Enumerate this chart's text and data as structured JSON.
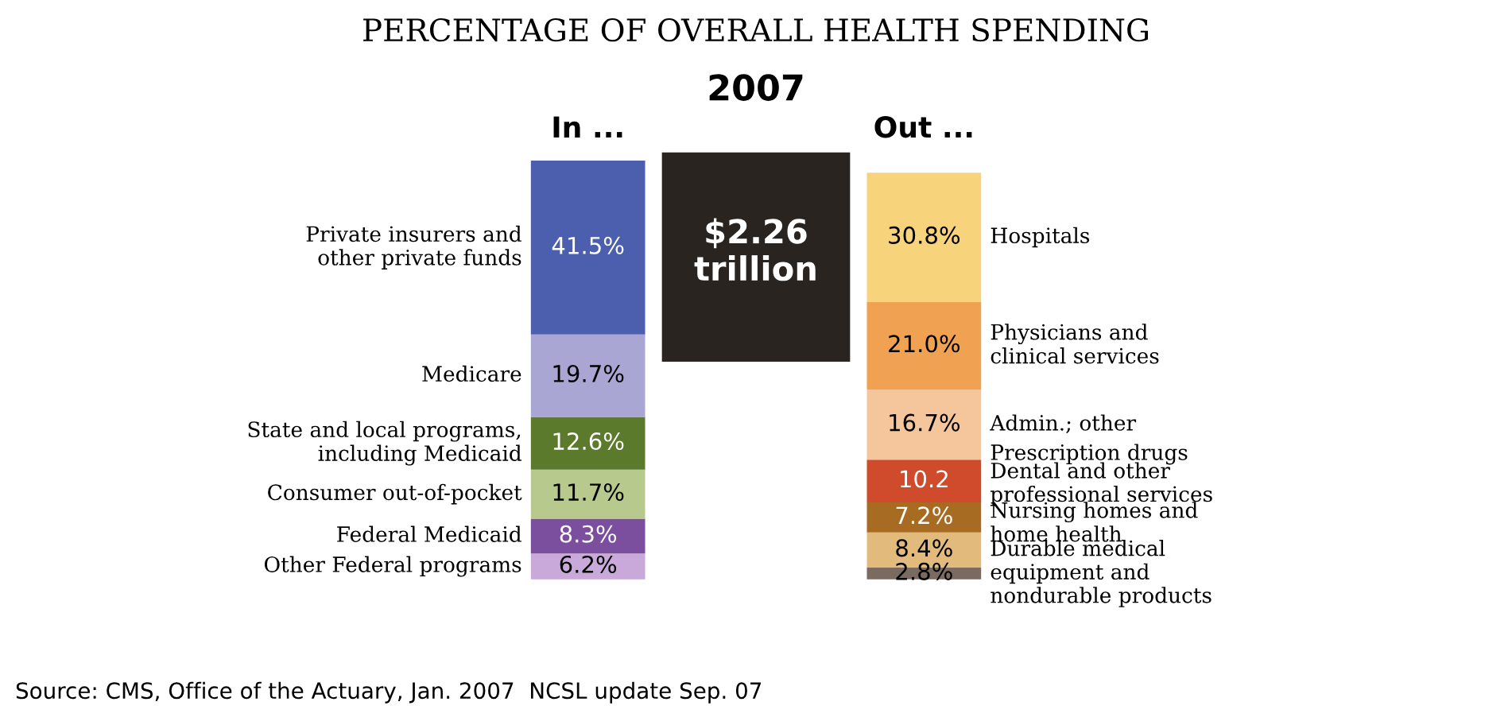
{
  "chart_data": {
    "type": "bar",
    "stacked": true,
    "title": "PERCENTAGE OF OVERALL HEALTH SPENDING",
    "subtitle": "2007",
    "categories": [
      "In ...",
      "Out ..."
    ],
    "series": [
      {
        "name": "Other Federal programs",
        "color": "#c9a9d9",
        "values": [
          6.2,
          null
        ],
        "value_labels": [
          "6.2%",
          null
        ]
      },
      {
        "name": "Federal Medicaid",
        "color": "#7b4f9e",
        "values": [
          8.3,
          null
        ],
        "value_labels": [
          "8.3%",
          null
        ]
      },
      {
        "name": "Consumer out-of-pocket",
        "color": "#b7c98c",
        "values": [
          11.7,
          null
        ],
        "value_labels": [
          "11.7%",
          null
        ]
      },
      {
        "name": "State and local programs,\nincluding Medicaid",
        "color": "#5b7a2c",
        "values": [
          12.6,
          null
        ],
        "value_labels": [
          "12.6%",
          null
        ]
      },
      {
        "name": "Medicare",
        "color": "#aaa6d4",
        "values": [
          19.7,
          null
        ],
        "value_labels": [
          "19.7%",
          null
        ]
      },
      {
        "name": "Private insurers and\nother private funds",
        "color": "#4b5fae",
        "values": [
          41.5,
          null
        ],
        "value_labels": [
          "41.5%",
          null
        ]
      },
      {
        "name": "Durable medical\nequipment and\nnondurable products",
        "color": "#7a6a60",
        "values": [
          null,
          2.8
        ],
        "value_labels": [
          null,
          "2.8%"
        ]
      },
      {
        "name": "Nursing homes and\nhome health",
        "color": "#e2bb7c",
        "values": [
          null,
          8.4
        ],
        "value_labels": [
          null,
          "8.4%"
        ]
      },
      {
        "name": "Dental and other\nprofessional services",
        "color": "#a86b22",
        "values": [
          null,
          7.2
        ],
        "value_labels": [
          null,
          "7.2%"
        ]
      },
      {
        "name": "Prescription drugs",
        "color": "#cf4b2b",
        "values": [
          null,
          10.2
        ],
        "value_labels": [
          null,
          "10.2"
        ]
      },
      {
        "name": "Admin.; other",
        "color": "#f5c59b",
        "values": [
          null,
          16.7
        ],
        "value_labels": [
          null,
          "16.7%"
        ]
      },
      {
        "name": "Physicians and\nclinical services",
        "color": "#f0a152",
        "values": [
          null,
          21.0
        ],
        "value_labels": [
          null,
          "21.0%"
        ]
      },
      {
        "name": "Hospitals",
        "color": "#f7d37b",
        "values": [
          null,
          30.8
        ],
        "value_labels": [
          null,
          "30.8%"
        ]
      }
    ],
    "annotations": [
      "$2.26\ntrillion",
      "Source: CMS, Office of the Actuary, Jan. 2007  NCSL update Sep. 07"
    ],
    "tick_labels": "x",
    "legend": false
  }
}
